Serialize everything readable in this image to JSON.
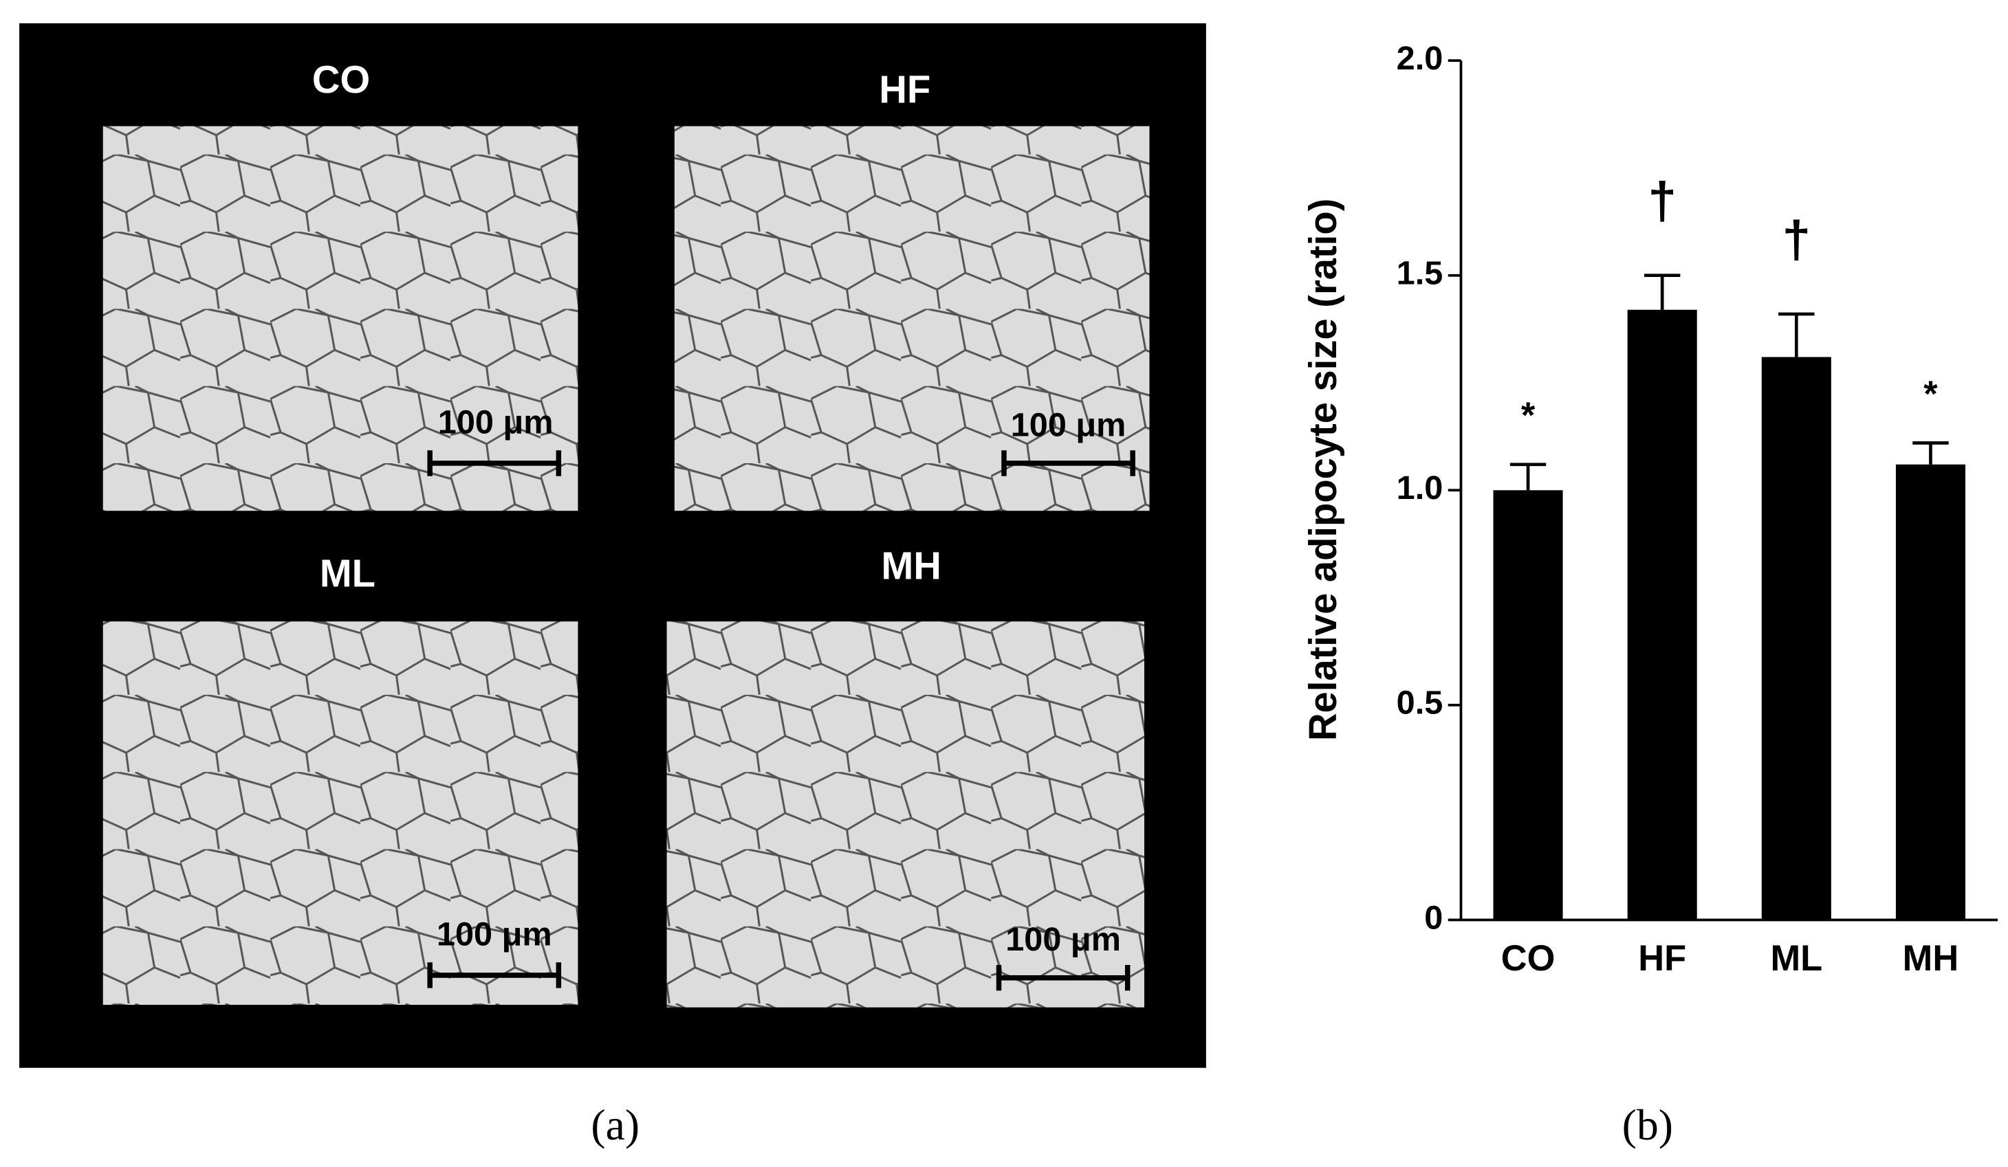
{
  "micrograph": {
    "panels": [
      {
        "label": "CO",
        "scale_bar": "100 μm"
      },
      {
        "label": "HF",
        "scale_bar": "100 μm"
      },
      {
        "label": "ML",
        "scale_bar": "100 μm"
      },
      {
        "label": "MH",
        "scale_bar": "100 μm"
      }
    ],
    "caption": "(a)"
  },
  "chart_data": {
    "type": "bar",
    "caption": "(b)",
    "ylabel": "Relative adipocyte size (ratio)",
    "categories": [
      "CO",
      "HF",
      "ML",
      "MH"
    ],
    "values": [
      1.0,
      1.42,
      1.31,
      1.06
    ],
    "errors": [
      0.06,
      0.08,
      0.1,
      0.05
    ],
    "annotations": [
      "*",
      "†",
      "†",
      "*"
    ],
    "color": "#000000",
    "ylim": [
      0,
      2
    ],
    "yticks": [
      0,
      0.5,
      {
        "value": 1,
        "label": "1.0"
      },
      1.5,
      {
        "value": 2,
        "label": "2.0"
      }
    ],
    "grid": false
  }
}
